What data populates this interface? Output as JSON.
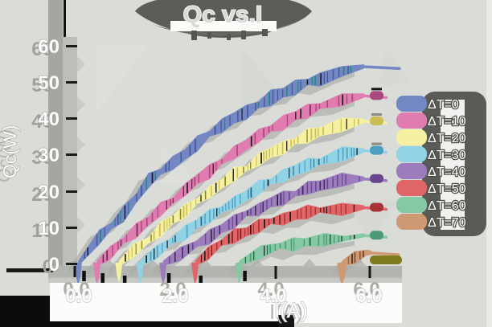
{
  "title": "Qc vs.I",
  "x_axis": {
    "label": "I(A)",
    "ticks": [
      "0.0",
      "2.0",
      "4.0",
      "6.0"
    ],
    "tick_values": [
      0,
      2,
      4,
      6
    ]
  },
  "y_axis": {
    "label": "Qc(W)",
    "ticks": [
      "60",
      "50",
      "40",
      "30",
      "20",
      "10",
      "0"
    ],
    "tick_values": [
      60,
      50,
      40,
      30,
      20,
      10,
      0
    ]
  },
  "style": {
    "background": "#dadcd8",
    "shadow_gray": "#a9aca7",
    "axis_gray": "#a4a6a2",
    "label_white": "#fdfdfd",
    "label_outline": "#9fa19b",
    "title_blob": "#5c5c58",
    "legend_blob": "#5a5a56"
  },
  "chart_data": {
    "type": "line",
    "title": "Qc vs.I",
    "xlabel": "I(A)",
    "ylabel": "Qc(W)",
    "xlim": [
      0,
      6.6
    ],
    "ylim": [
      0,
      60
    ],
    "grid": false,
    "legend_position": "right",
    "series": [
      {
        "name": "ΔT=0",
        "color": "#7387c2",
        "dark": "#46549c",
        "accent": "#1f8a78",
        "base": 7,
        "points": [
          [
            0.07,
            0
          ],
          [
            0.5,
            7
          ],
          [
            1,
            14
          ],
          [
            1.5,
            22.5
          ],
          [
            2,
            27.5
          ],
          [
            2.5,
            33
          ],
          [
            3,
            38
          ],
          [
            3.5,
            42
          ],
          [
            4,
            45.5
          ],
          [
            4.5,
            48.5
          ],
          [
            5,
            51
          ],
          [
            5.45,
            53.2
          ],
          [
            5.9,
            54.3
          ]
        ],
        "tail_end": 6.62,
        "nub": false
      },
      {
        "name": "ΔT=10",
        "color": "#e07cb0",
        "dark": "#a8487e",
        "accent": "#6c2450",
        "base": 6.5,
        "points": [
          [
            0.45,
            0
          ],
          [
            1,
            6.5
          ],
          [
            1.5,
            12
          ],
          [
            2,
            17.5
          ],
          [
            2.5,
            23
          ],
          [
            3,
            28
          ],
          [
            3.5,
            33
          ],
          [
            4,
            37
          ],
          [
            4.5,
            40.5
          ],
          [
            5,
            43.5
          ],
          [
            5.45,
            45.3
          ],
          [
            5.9,
            46.3
          ]
        ],
        "tail_end": 6.35,
        "nub": true
      },
      {
        "name": "ΔT=20",
        "color": "#f5f0a2",
        "dark": "#c9bd54",
        "accent": "#8a8420",
        "base": 6.5,
        "points": [
          [
            0.9,
            0
          ],
          [
            1.5,
            6.5
          ],
          [
            2,
            12
          ],
          [
            2.5,
            17
          ],
          [
            3,
            22
          ],
          [
            3.5,
            26.5
          ],
          [
            4,
            30.5
          ],
          [
            4.5,
            33.8
          ],
          [
            5,
            36.4
          ],
          [
            5.45,
            38.2
          ],
          [
            5.9,
            39.3
          ]
        ],
        "tail_end": 6.35,
        "nub": true
      },
      {
        "name": "ΔT=30",
        "color": "#92d2e5",
        "dark": "#4c9fc0",
        "accent": "#2a6888",
        "base": 6.5,
        "points": [
          [
            1.33,
            0
          ],
          [
            2,
            6.5
          ],
          [
            2.5,
            10.8
          ],
          [
            3,
            15
          ],
          [
            3.5,
            19
          ],
          [
            4,
            22.5
          ],
          [
            4.5,
            25.8
          ],
          [
            5,
            28.3
          ],
          [
            5.45,
            30
          ],
          [
            5.9,
            31.2
          ]
        ],
        "tail_end": 6.35,
        "nub": true
      },
      {
        "name": "ΔT=40",
        "color": "#9c7cbd",
        "dark": "#68478f",
        "accent": "#40265e",
        "base": 6.5,
        "points": [
          [
            1.8,
            0
          ],
          [
            2.5,
            5.5
          ],
          [
            3,
            9.5
          ],
          [
            3.5,
            13.5
          ],
          [
            4,
            16.8
          ],
          [
            4.5,
            19.5
          ],
          [
            5,
            21.6
          ],
          [
            5.45,
            22.8
          ],
          [
            5.9,
            23.4
          ]
        ],
        "tail_end": 6.35,
        "nub": true
      },
      {
        "name": "ΔT=50",
        "color": "#e06567",
        "dark": "#a83336",
        "accent": "#641416",
        "base": 6.3,
        "points": [
          [
            2.45,
            0
          ],
          [
            3,
            5.5
          ],
          [
            3.5,
            9
          ],
          [
            4,
            11.6
          ],
          [
            4.5,
            13.4
          ],
          [
            5,
            14.4
          ],
          [
            5.45,
            15
          ],
          [
            5.9,
            15.5
          ]
        ],
        "tail_end": 6.35,
        "nub": true
      },
      {
        "name": "ΔT=60",
        "color": "#85c8a4",
        "dark": "#4c9a74",
        "accent": "#1e6444",
        "base": 6,
        "points": [
          [
            3.35,
            0
          ],
          [
            3.8,
            3.2
          ],
          [
            4.2,
            4.8
          ],
          [
            4.7,
            6
          ],
          [
            5.1,
            6.7
          ],
          [
            5.5,
            7.2
          ],
          [
            5.9,
            7.8
          ]
        ],
        "tail_end": 6.35,
        "nub": true
      },
      {
        "name": "ΔT=70",
        "color": "#cf9a73",
        "dark": "#9c6540",
        "accent": "#6e3c1c",
        "base": 6,
        "points": [
          [
            5.45,
            0
          ],
          [
            5.7,
            1.6
          ],
          [
            5.95,
            2.8
          ],
          [
            6.05,
            3
          ]
        ],
        "tail_end": 6.6,
        "nub": true,
        "nub_color": "#7e7d1e",
        "nub_y": 1,
        "nub_w": 40
      }
    ]
  }
}
